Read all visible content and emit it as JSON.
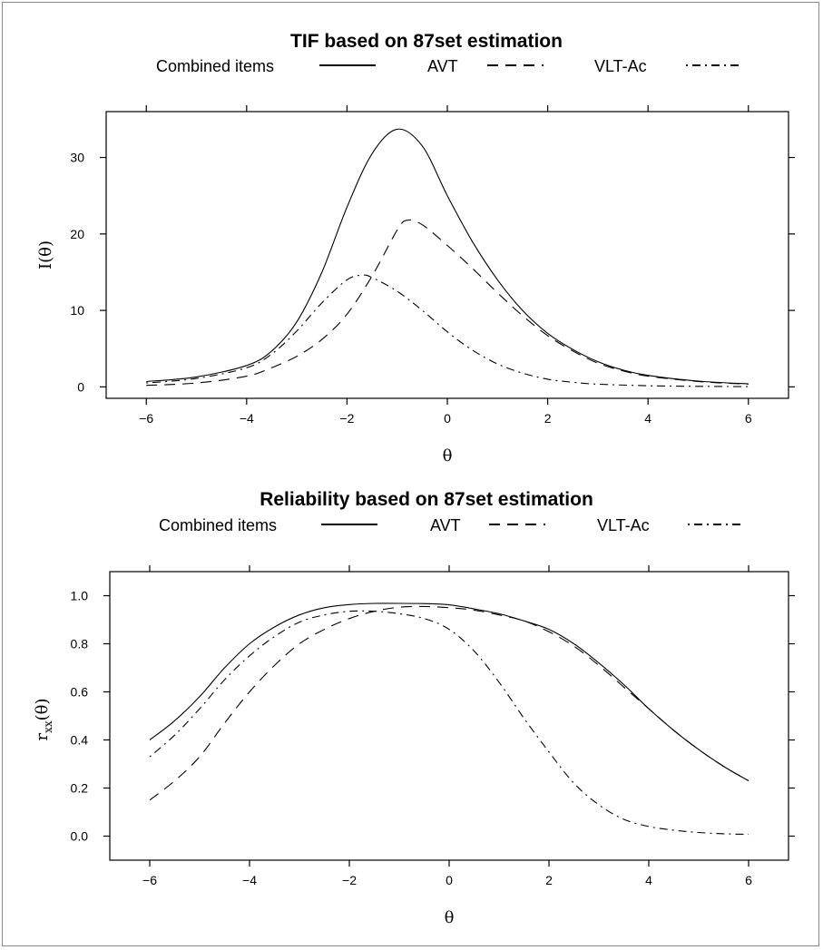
{
  "chart_data": [
    {
      "type": "line",
      "title": "TIF based on 87set estimation",
      "xlabel": "θ",
      "ylabel": "I(θ)",
      "xlim": [
        -6.8,
        6.8
      ],
      "ylim": [
        -1.5,
        36
      ],
      "xticks": [
        -6,
        -4,
        -2,
        0,
        2,
        4,
        6
      ],
      "xtick_labels": [
        "−6",
        "−4",
        "−2",
        "0",
        "2",
        "4",
        "6"
      ],
      "yticks": [
        0,
        10,
        20,
        30
      ],
      "ytick_labels": [
        "0",
        "10",
        "20",
        "30"
      ],
      "legend_position": "top",
      "grid": false,
      "series": [
        {
          "name": "Combined items",
          "style": "solid",
          "x": [
            -6,
            -5,
            -4,
            -3.5,
            -3,
            -2.5,
            -2,
            -1.5,
            -1,
            -0.5,
            0,
            0.5,
            1,
            1.5,
            2,
            2.5,
            3,
            3.5,
            4,
            5,
            6
          ],
          "y": [
            0.7,
            1.3,
            2.8,
            4.7,
            8.5,
            15.0,
            23.5,
            30.5,
            33.7,
            31.5,
            25.0,
            19.0,
            14.0,
            10.0,
            7.0,
            4.9,
            3.3,
            2.2,
            1.5,
            0.75,
            0.4
          ]
        },
        {
          "name": "AVT",
          "style": "dashed",
          "x": [
            -6,
            -5,
            -4,
            -3.5,
            -3,
            -2.5,
            -2,
            -1.5,
            -1,
            -0.8,
            -0.5,
            0,
            0.5,
            1,
            1.5,
            2,
            2.5,
            3,
            3.5,
            4,
            5,
            6
          ],
          "y": [
            0.2,
            0.5,
            1.4,
            2.5,
            4.0,
            6.2,
            9.5,
            14.5,
            20.5,
            21.8,
            21.2,
            18.5,
            15.5,
            12.3,
            9.3,
            6.7,
            4.7,
            3.1,
            2.1,
            1.4,
            0.7,
            0.35
          ]
        },
        {
          "name": "VLT-Ac",
          "style": "dotdash",
          "x": [
            -6,
            -5,
            -4,
            -3.5,
            -3,
            -2.5,
            -2,
            -1.7,
            -1.5,
            -1,
            -0.5,
            0,
            0.5,
            1,
            1.5,
            2,
            2.5,
            3,
            4,
            5,
            6
          ],
          "y": [
            0.5,
            1.1,
            2.5,
            4.3,
            7.3,
            11.0,
            14.0,
            14.6,
            14.3,
            12.5,
            10.0,
            7.2,
            4.8,
            3.0,
            1.8,
            1.0,
            0.6,
            0.35,
            0.15,
            0.07,
            0.03
          ]
        }
      ]
    },
    {
      "type": "line",
      "title": "Reliability based on 87set estimation",
      "xlabel": "θ",
      "ylabel": "rxx(θ)",
      "ylabel_main": "r",
      "ylabel_sub": "xx",
      "ylabel_tail": "(θ)",
      "xlim": [
        -6.8,
        6.8
      ],
      "ylim": [
        -0.1,
        1.1
      ],
      "xticks": [
        -6,
        -4,
        -2,
        0,
        2,
        4,
        6
      ],
      "xtick_labels": [
        "−6",
        "−4",
        "−2",
        "0",
        "2",
        "4",
        "6"
      ],
      "yticks": [
        0.0,
        0.2,
        0.4,
        0.6,
        0.8,
        1.0
      ],
      "ytick_labels": [
        "0.0",
        "0.2",
        "0.4",
        "0.6",
        "0.8",
        "1.0"
      ],
      "legend_position": "top",
      "grid": false,
      "series": [
        {
          "name": "Combined items",
          "style": "solid",
          "x": [
            -6,
            -5.5,
            -5,
            -4.5,
            -4,
            -3.5,
            -3,
            -2.5,
            -2,
            -1.5,
            -1,
            -0.5,
            0,
            0.5,
            1,
            1.5,
            2,
            2.5,
            3,
            3.5,
            4,
            4.5,
            5,
            5.5,
            6
          ],
          "y": [
            0.4,
            0.48,
            0.58,
            0.7,
            0.8,
            0.87,
            0.92,
            0.95,
            0.963,
            0.968,
            0.968,
            0.967,
            0.962,
            0.945,
            0.925,
            0.895,
            0.86,
            0.8,
            0.72,
            0.63,
            0.53,
            0.44,
            0.36,
            0.29,
            0.23
          ]
        },
        {
          "name": "AVT",
          "style": "dashed",
          "x": [
            -6,
            -5.5,
            -5,
            -4.5,
            -4,
            -3.5,
            -3,
            -2.5,
            -2,
            -1.5,
            -1,
            -0.5,
            0,
            0.5,
            1,
            1.5,
            2,
            2.5,
            3,
            3.5,
            4,
            4.5,
            5,
            5.5,
            6
          ],
          "y": [
            0.15,
            0.23,
            0.33,
            0.47,
            0.6,
            0.71,
            0.8,
            0.86,
            0.905,
            0.935,
            0.952,
            0.955,
            0.95,
            0.94,
            0.92,
            0.895,
            0.85,
            0.79,
            0.71,
            0.62,
            0.53,
            0.44,
            0.36,
            0.29,
            0.23
          ]
        },
        {
          "name": "VLT-Ac",
          "style": "dotdash",
          "x": [
            -6,
            -5.5,
            -5,
            -4.5,
            -4,
            -3.5,
            -3,
            -2.5,
            -2,
            -1.5,
            -1,
            -0.5,
            0,
            0.5,
            1,
            1.5,
            2,
            2.5,
            3,
            3.5,
            4,
            4.5,
            5,
            5.5,
            6
          ],
          "y": [
            0.33,
            0.42,
            0.53,
            0.65,
            0.75,
            0.83,
            0.89,
            0.92,
            0.935,
            0.935,
            0.925,
            0.905,
            0.86,
            0.77,
            0.64,
            0.49,
            0.35,
            0.22,
            0.13,
            0.07,
            0.04,
            0.025,
            0.015,
            0.01,
            0.007
          ]
        }
      ]
    }
  ]
}
